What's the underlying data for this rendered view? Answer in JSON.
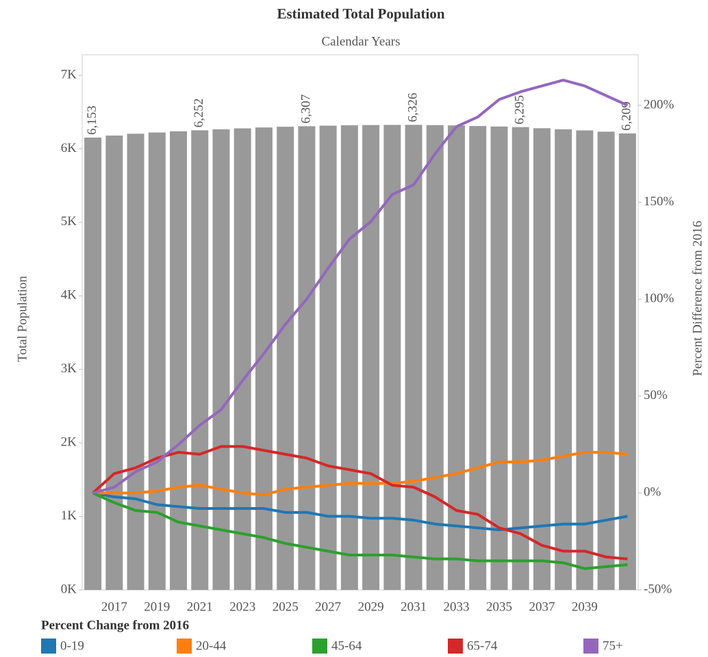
{
  "chart_data": {
    "type": "bar",
    "title": "Estimated Total Population",
    "subtitle": "Calendar Years",
    "y_label": "Total Population",
    "y2_label": "Percent Difference from 2016",
    "legend_title": "Percent Change from 2016",
    "categories": [
      null,
      "2017",
      null,
      "2019",
      null,
      "2021",
      null,
      "2023",
      null,
      "2025",
      null,
      "2027",
      null,
      "2029",
      null,
      "2031",
      null,
      "2033",
      null,
      "2035",
      null,
      "2037",
      null,
      "2039",
      null,
      null
    ],
    "values": [
      6153,
      6180,
      6205,
      6222,
      6238,
      6252,
      6265,
      6278,
      6290,
      6300,
      6307,
      6315,
      6320,
      6323,
      6325,
      6326,
      6322,
      6318,
      6310,
      6303,
      6295,
      6280,
      6265,
      6250,
      6233,
      6209
    ],
    "value_labels": [
      "6,153",
      null,
      null,
      null,
      null,
      "6,252",
      null,
      null,
      null,
      null,
      "6,307",
      null,
      null,
      null,
      null,
      "6,326",
      null,
      null,
      null,
      null,
      "6,295",
      null,
      null,
      null,
      null,
      "6,209"
    ],
    "color": "#999999",
    "ylim": [
      0,
      7000
    ],
    "yticks": [
      {
        "value": 0,
        "label": "0K"
      },
      {
        "value": 1000,
        "label": "1K"
      },
      {
        "value": 2000,
        "label": "2K"
      },
      {
        "value": 3000,
        "label": "3K"
      },
      {
        "value": 4000,
        "label": "4K"
      },
      {
        "value": 5000,
        "label": "5K"
      },
      {
        "value": 6000,
        "label": "6K"
      },
      {
        "value": 7000,
        "label": "7K"
      }
    ],
    "y2lim": [
      -50,
      215.5
    ],
    "y2ticks": [
      {
        "value": -50,
        "label": "-50%"
      },
      {
        "value": 0,
        "label": "0%"
      },
      {
        "value": 50,
        "label": "50%"
      },
      {
        "value": 100,
        "label": "100%"
      },
      {
        "value": 150,
        "label": "150%"
      },
      {
        "value": 200,
        "label": "200%"
      }
    ],
    "series": [
      {
        "name": "0-19",
        "color": "#1f77b4",
        "axis": "y2",
        "values": [
          0,
          -2,
          -3,
          -6,
          -7,
          -8,
          -8,
          -8,
          -8,
          -10,
          -10,
          -12,
          -12,
          -13,
          -13,
          -14,
          -16,
          -17,
          -18,
          -19,
          -18,
          -17,
          -16,
          -16,
          -14,
          -12
        ]
      },
      {
        "name": "20-44",
        "color": "#ff7f0e",
        "axis": "y2",
        "values": [
          0,
          0,
          0,
          1,
          3,
          4,
          2,
          0,
          -1,
          2,
          3,
          4,
          5,
          5,
          5,
          6,
          8,
          10,
          13,
          16,
          16,
          17,
          19,
          21,
          21,
          20
        ]
      },
      {
        "name": "45-64",
        "color": "#2ca02c",
        "axis": "y2",
        "values": [
          0,
          -5,
          -9,
          -10,
          -15,
          -17,
          -19,
          -21,
          -23,
          -26,
          -28,
          -30,
          -32,
          -32,
          -32,
          -33,
          -34,
          -34,
          -35,
          -35,
          -35,
          -35,
          -36,
          -39,
          -38,
          -37
        ]
      },
      {
        "name": "65-74",
        "color": "#d62728",
        "axis": "y2",
        "values": [
          0,
          10,
          13,
          18,
          21,
          20,
          24,
          24,
          22,
          20,
          18,
          14,
          12,
          10,
          4,
          3,
          -2,
          -9,
          -11,
          -18,
          -21,
          -27,
          -30,
          -30,
          -33,
          -34
        ]
      },
      {
        "name": "75+",
        "color": "#9467bd",
        "axis": "y2",
        "values": [
          0,
          3,
          11,
          16,
          25,
          35,
          43,
          58,
          72,
          87,
          100,
          116,
          131,
          140,
          154,
          159,
          175,
          189,
          194,
          203,
          207,
          210,
          213,
          210,
          205,
          200
        ]
      }
    ]
  }
}
